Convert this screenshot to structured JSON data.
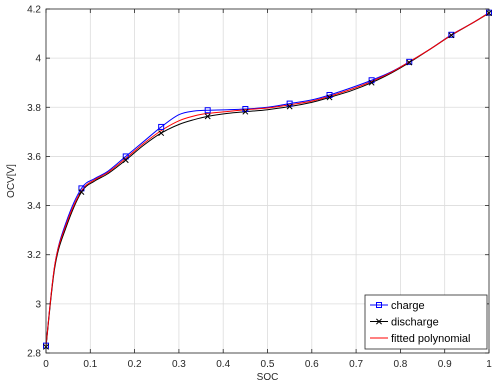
{
  "chart_data": {
    "type": "line",
    "title": "",
    "xlabel": "SOC",
    "ylabel": "OCV[V]",
    "xlim": [
      0,
      1
    ],
    "ylim": [
      2.8,
      4.2
    ],
    "xticks": [
      0,
      0.1,
      0.2,
      0.3,
      0.4,
      0.5,
      0.6,
      0.7,
      0.8,
      0.9,
      1
    ],
    "xtick_labels": [
      "0",
      "0.1",
      "0.2",
      "0.3",
      "0.4",
      "0.5",
      "0.6",
      "0.7",
      "0.8",
      "0.9",
      "1"
    ],
    "yticks": [
      2.8,
      3,
      3.2,
      3.4,
      3.6,
      3.8,
      4,
      4.2
    ],
    "ytick_labels": [
      "2.8",
      "3",
      "3.2",
      "3.4",
      "3.6",
      "3.8",
      "4",
      "4.2"
    ],
    "grid": true,
    "legend_position": "bottom-right",
    "series": [
      {
        "name": "charge",
        "color": "#0000ff",
        "marker": "square",
        "x": [
          0.0,
          0.02,
          0.045,
          0.08,
          0.11,
          0.14,
          0.18,
          0.22,
          0.26,
          0.3,
          0.335,
          0.365,
          0.41,
          0.45,
          0.5,
          0.55,
          0.6,
          0.64,
          0.69,
          0.735,
          0.78,
          0.82,
          0.87,
          0.915,
          0.96,
          1.0
        ],
        "y": [
          2.83,
          3.16,
          3.33,
          3.47,
          3.51,
          3.54,
          3.6,
          3.66,
          3.72,
          3.77,
          3.785,
          3.788,
          3.79,
          3.793,
          3.8,
          3.815,
          3.83,
          3.85,
          3.88,
          3.91,
          3.945,
          3.985,
          4.04,
          4.095,
          4.14,
          4.185
        ],
        "marker_indices": [
          0,
          3,
          6,
          8,
          11,
          13,
          15,
          17,
          19,
          21,
          23,
          25
        ]
      },
      {
        "name": "discharge",
        "color": "#000000",
        "marker": "x",
        "x": [
          0.0,
          0.02,
          0.045,
          0.08,
          0.11,
          0.14,
          0.18,
          0.22,
          0.26,
          0.3,
          0.335,
          0.365,
          0.41,
          0.45,
          0.5,
          0.55,
          0.6,
          0.64,
          0.69,
          0.735,
          0.78,
          0.82,
          0.87,
          0.915,
          0.96,
          1.0
        ],
        "y": [
          2.825,
          3.15,
          3.31,
          3.455,
          3.5,
          3.53,
          3.585,
          3.645,
          3.695,
          3.73,
          3.75,
          3.763,
          3.775,
          3.782,
          3.79,
          3.803,
          3.82,
          3.84,
          3.868,
          3.9,
          3.94,
          3.982,
          4.04,
          4.093,
          4.14,
          4.183
        ],
        "marker_indices": [
          0,
          3,
          6,
          8,
          11,
          13,
          15,
          17,
          19,
          21,
          23,
          25
        ]
      },
      {
        "name": "fitted polynomial",
        "color": "#ff0000",
        "marker": "none",
        "x": [
          0.0,
          0.02,
          0.045,
          0.08,
          0.11,
          0.14,
          0.18,
          0.22,
          0.26,
          0.3,
          0.335,
          0.365,
          0.41,
          0.45,
          0.5,
          0.55,
          0.6,
          0.64,
          0.69,
          0.735,
          0.78,
          0.82,
          0.87,
          0.915,
          0.96,
          1.0
        ],
        "y": [
          2.83,
          3.16,
          3.32,
          3.46,
          3.505,
          3.535,
          3.592,
          3.652,
          3.705,
          3.745,
          3.765,
          3.775,
          3.783,
          3.79,
          3.797,
          3.81,
          3.825,
          3.845,
          3.874,
          3.905,
          3.943,
          3.985,
          4.04,
          4.094,
          4.14,
          4.184
        ]
      }
    ]
  }
}
